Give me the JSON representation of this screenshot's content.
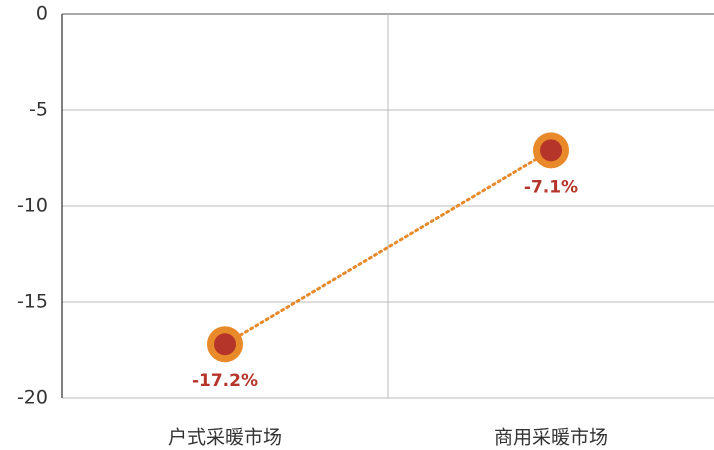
{
  "chart_data": {
    "type": "line",
    "categories": [
      "户式采暖市场",
      "商用采暖市场"
    ],
    "values": [
      -17.2,
      -7.1
    ],
    "value_labels": [
      "-17.2%",
      "-7.1%"
    ],
    "color": "#e8892a",
    "marker_color": "#b5352a",
    "ylim": [
      -20,
      0
    ],
    "yticks": [
      0,
      -5,
      -10,
      -15,
      -20
    ],
    "grid": true
  }
}
